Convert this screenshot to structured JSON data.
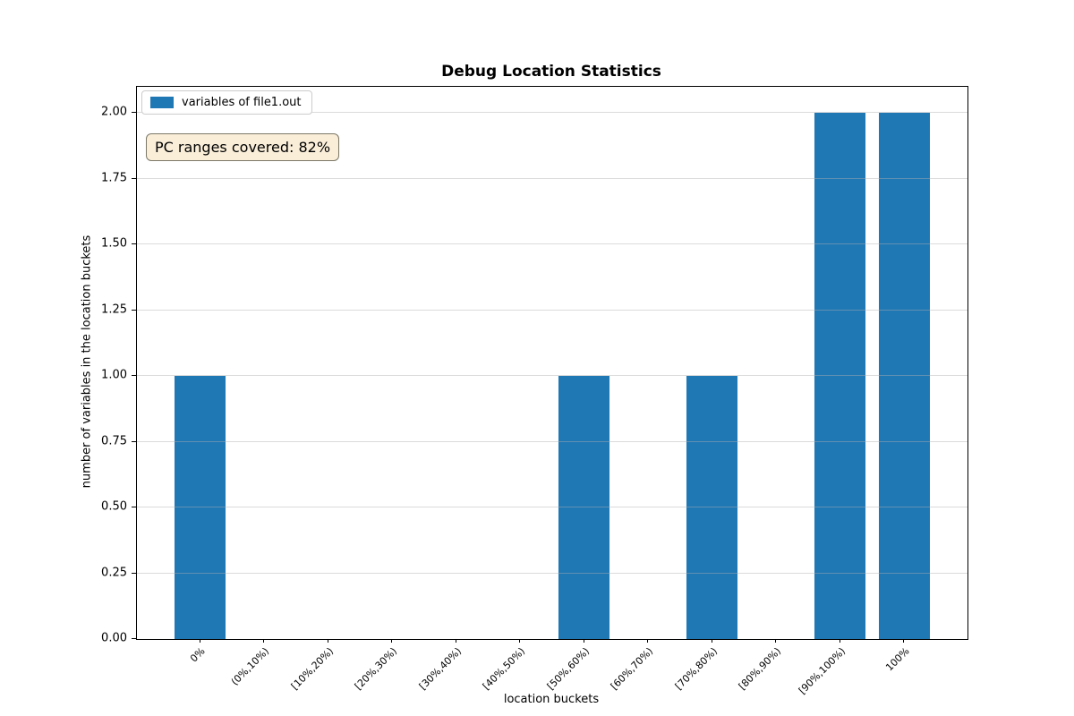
{
  "chart_data": {
    "type": "bar",
    "title": "Debug Location Statistics",
    "xlabel": "location buckets",
    "ylabel": "number of variables in the location buckets",
    "categories": [
      "0%",
      "(0%,10%)",
      "[10%,20%)",
      "[20%,30%)",
      "[30%,40%)",
      "[40%,50%)",
      "[50%,60%)",
      "[60%,70%)",
      "[70%,80%)",
      "[80%,90%)",
      "[90%,100%)",
      "100%"
    ],
    "series": [
      {
        "name": "variables of file1.out",
        "color": "#1f77b4",
        "values": [
          1,
          0,
          0,
          0,
          0,
          0,
          1,
          0,
          1,
          0,
          2,
          2
        ]
      }
    ],
    "ylim": [
      0,
      2.1
    ],
    "xlim": [
      -0.99,
      11.99
    ],
    "bar_width": 0.8,
    "yticks": [
      {
        "value": 0.0,
        "label": "0.00"
      },
      {
        "value": 0.25,
        "label": "0.25"
      },
      {
        "value": 0.5,
        "label": "0.50"
      },
      {
        "value": 0.75,
        "label": "0.75"
      },
      {
        "value": 1.0,
        "label": "1.00"
      },
      {
        "value": 1.25,
        "label": "1.25"
      },
      {
        "value": 1.5,
        "label": "1.50"
      },
      {
        "value": 1.75,
        "label": "1.75"
      },
      {
        "value": 2.0,
        "label": "2.00"
      }
    ],
    "grid": {
      "axis": "y",
      "color": "#b0b0b0"
    },
    "legend": {
      "position": "upper left"
    },
    "annotation": {
      "text": "PC ranges covered: 82%",
      "background": "#faeed9",
      "border_color": "#7c7868"
    }
  }
}
